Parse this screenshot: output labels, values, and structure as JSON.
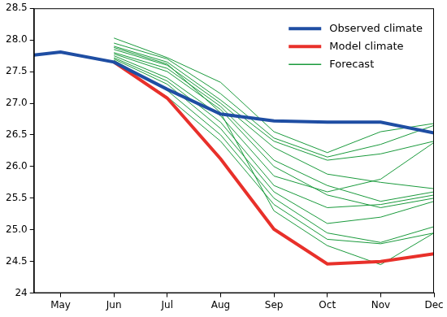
{
  "chart_data": {
    "type": "line",
    "x": [
      4.5,
      5,
      6,
      7,
      8,
      9,
      10,
      11,
      12
    ],
    "xlim": [
      4.5,
      12
    ],
    "xticks": [
      {
        "value": 5,
        "label": "May"
      },
      {
        "value": 6,
        "label": "Jun"
      },
      {
        "value": 7,
        "label": "Jul"
      },
      {
        "value": 8,
        "label": "Aug"
      },
      {
        "value": 9,
        "label": "Sep"
      },
      {
        "value": 10,
        "label": "Oct"
      },
      {
        "value": 11,
        "label": "Nov"
      },
      {
        "value": 12,
        "label": "Dec"
      }
    ],
    "ylim": [
      24,
      28.5
    ],
    "yticks": [
      24,
      24.5,
      {
        "value": 25,
        "label": "25.0"
      },
      25.5,
      {
        "value": 26,
        "label": "26.0"
      },
      26.5,
      {
        "value": 27,
        "label": "27.0"
      },
      27.5,
      {
        "value": 28,
        "label": "28.0"
      },
      28.5
    ],
    "grid": false,
    "legend": "upper right",
    "series": [
      {
        "name": "Observed climate",
        "color": "#1f4ea3",
        "values": [
          27.76,
          27.81,
          27.65,
          27.22,
          26.83,
          26.72,
          26.7,
          26.7,
          26.53
        ]
      },
      {
        "name": "Model climate",
        "color": "#e8302a",
        "values": [
          null,
          null,
          27.65,
          27.08,
          26.12,
          25.01,
          24.46,
          24.5,
          24.62
        ]
      },
      {
        "name": "Forecast",
        "color": "#1a9a3c",
        "members": [
          [
            null,
            null,
            28.03,
            27.72,
            27.33,
            26.55,
            26.22,
            26.55,
            26.68
          ],
          [
            null,
            null,
            27.95,
            27.7,
            27.15,
            26.45,
            26.15,
            26.35,
            26.65
          ],
          [
            null,
            null,
            27.9,
            27.65,
            27.05,
            26.4,
            26.1,
            26.2,
            26.4
          ],
          [
            null,
            null,
            27.85,
            27.6,
            27.0,
            26.3,
            25.88,
            25.75,
            25.65
          ],
          [
            null,
            null,
            27.8,
            27.55,
            26.95,
            26.1,
            25.7,
            25.45,
            25.6
          ],
          [
            null,
            null,
            27.78,
            27.5,
            26.9,
            26.0,
            25.55,
            25.35,
            25.5
          ],
          [
            null,
            null,
            27.75,
            27.4,
            26.8,
            25.85,
            25.6,
            25.8,
            26.38
          ],
          [
            null,
            null,
            27.72,
            27.35,
            26.7,
            25.7,
            25.35,
            25.4,
            25.55
          ],
          [
            null,
            null,
            27.7,
            27.3,
            26.6,
            25.6,
            25.1,
            25.2,
            25.45
          ],
          [
            null,
            null,
            27.68,
            27.2,
            26.5,
            25.5,
            24.95,
            24.8,
            25.05
          ],
          [
            null,
            null,
            27.65,
            27.1,
            26.4,
            25.4,
            24.85,
            24.78,
            24.95
          ],
          [
            null,
            null,
            27.88,
            27.62,
            26.85,
            25.3,
            24.75,
            24.45,
            24.95
          ]
        ]
      }
    ]
  }
}
